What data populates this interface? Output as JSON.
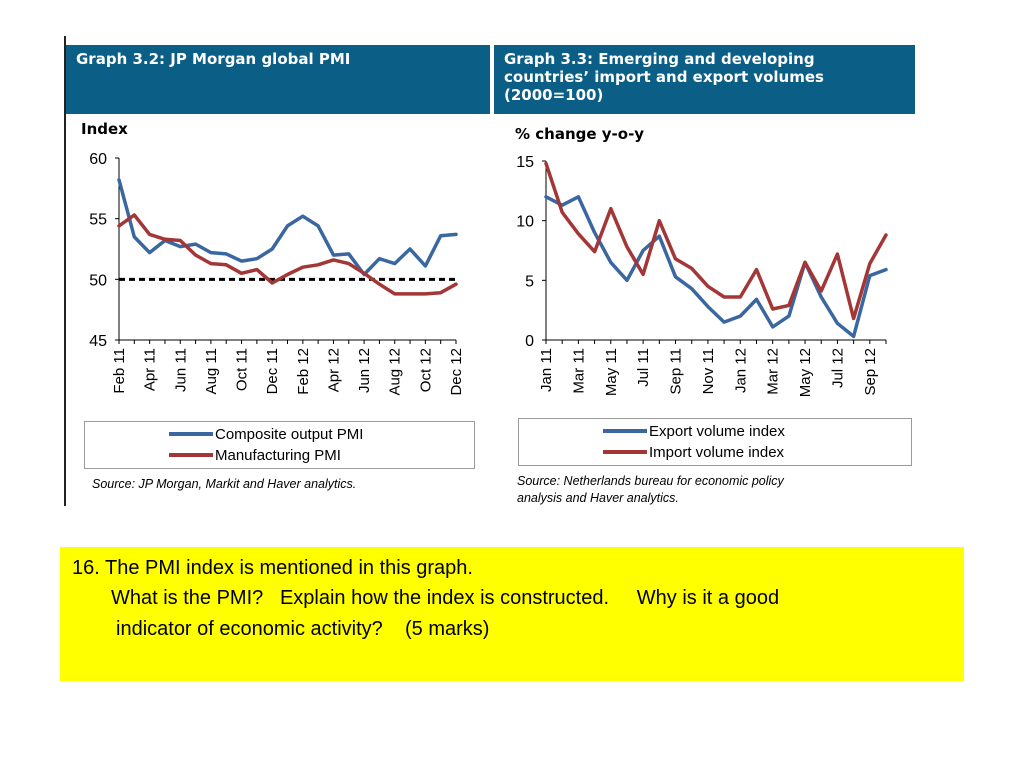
{
  "left_panel": {
    "header": [
      "Graph 3.2: JP Morgan global PMI"
    ],
    "source": "Source: JP Morgan, Markit and Haver analytics."
  },
  "right_panel": {
    "header": [
      "Graph 3.3: Emerging and developing",
      "countries’ import and export volumes",
      "(2000=100)"
    ],
    "source": [
      "Source: Netherlands bureau for economic policy",
      "analysis and Haver analytics."
    ]
  },
  "chart_data": [
    {
      "type": "line",
      "ylabel": "Index",
      "ylim": [
        45,
        60
      ],
      "yticks": [
        "60",
        "55",
        "50",
        "45"
      ],
      "x": [
        "Feb 11",
        "Mar 11",
        "Apr 11",
        "May 11",
        "Jun 11",
        "Jul 11",
        "Aug 11",
        "Sep 11",
        "Oct 11",
        "Nov 11",
        "Dec 11",
        "Jan 12",
        "Feb 12",
        "Mar 12",
        "Apr 12",
        "May 12",
        "Jun 12",
        "Jul 12",
        "Aug 12",
        "Sep 12",
        "Oct 12",
        "Nov 12",
        "Dec 12"
      ],
      "xtick_labels": [
        "Feb 11",
        "Apr 11",
        "Jun 11",
        "Aug 11",
        "Oct 11",
        "Dec 11",
        "Feb 12",
        "Apr 12",
        "Jun 12",
        "Aug 12",
        "Oct 12",
        "Dec 12"
      ],
      "series": [
        {
          "name": "Composite output PMI",
          "color": "#3a67a0",
          "values": [
            58.2,
            53.5,
            52.2,
            53.2,
            52.7,
            52.9,
            52.2,
            52.1,
            51.5,
            51.7,
            52.5,
            54.4,
            55.2,
            54.4,
            52.0,
            52.1,
            50.4,
            51.7,
            51.3,
            52.5,
            51.1,
            53.6,
            53.7
          ]
        },
        {
          "name": "Manufacturing PMI",
          "color": "#a33636",
          "values": [
            54.4,
            55.3,
            53.7,
            53.3,
            53.2,
            52.0,
            51.3,
            51.2,
            50.5,
            50.8,
            49.7,
            50.4,
            51.0,
            51.2,
            51.6,
            51.3,
            50.5,
            49.6,
            48.8,
            48.8,
            48.8,
            48.9,
            49.6
          ]
        }
      ],
      "reference_line": {
        "y": 50,
        "style": "dashed",
        "color": "#000000"
      }
    },
    {
      "type": "line",
      "ylabel": "% change y-o-y",
      "ylim": [
        0,
        15
      ],
      "yticks": [
        "15",
        "10",
        "5",
        "0"
      ],
      "x": [
        "Jan 11",
        "Feb 11",
        "Mar 11",
        "Apr 11",
        "May 11",
        "Jun 11",
        "Jul 11",
        "Aug 11",
        "Sep 11",
        "Oct 11",
        "Nov 11",
        "Dec 11",
        "Jan 12",
        "Feb 12",
        "Mar 12",
        "Apr 12",
        "May 12",
        "Jun 12",
        "Jul 12",
        "Aug 12",
        "Sep 12",
        "Oct 12"
      ],
      "xtick_labels": [
        "Jan 11",
        "Mar 11",
        "May 11",
        "Jul 11",
        "Sep 11",
        "Nov 11",
        "Jan 12",
        "Mar 12",
        "May 12",
        "Jul 12",
        "Sep 12"
      ],
      "series": [
        {
          "name": "Export volume index",
          "color": "#3a67a0",
          "values": [
            12.0,
            11.3,
            12.0,
            9.0,
            6.5,
            5.0,
            7.5,
            8.7,
            5.3,
            4.3,
            2.8,
            1.5,
            2.0,
            3.4,
            1.1,
            2.0,
            6.5,
            3.6,
            1.4,
            0.3,
            5.4,
            5.9
          ]
        },
        {
          "name": "Import volume index",
          "color": "#a33636",
          "values": [
            14.8,
            10.7,
            8.9,
            7.4,
            11.0,
            7.8,
            5.5,
            10.0,
            6.8,
            6.0,
            4.5,
            3.6,
            3.6,
            5.9,
            2.6,
            2.9,
            6.5,
            4.1,
            7.2,
            1.8,
            6.4,
            8.8
          ]
        }
      ]
    }
  ],
  "question": {
    "line1": "16. The PMI index is mentioned in this graph.",
    "line2": "What is the PMI?   Explain how the index is constructed.     Why is it a good",
    "line3": "indicator of economic activity?    (5 marks)"
  }
}
